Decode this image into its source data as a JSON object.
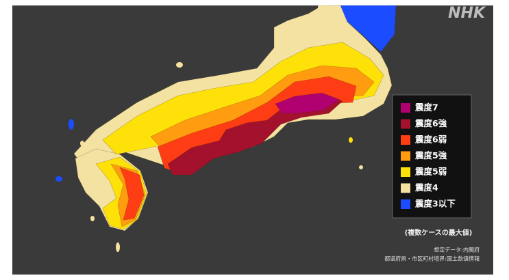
{
  "logo": "NHK",
  "legend": {
    "items": [
      {
        "label": "震度7",
        "color": "#b1006f"
      },
      {
        "label": "震度6強",
        "color": "#a3112c"
      },
      {
        "label": "震度6弱",
        "color": "#ff3d14"
      },
      {
        "label": "震度5強",
        "color": "#ff9c10"
      },
      {
        "label": "震度5弱",
        "color": "#ffe10a"
      },
      {
        "label": "震度4",
        "color": "#f4e2a2"
      },
      {
        "label": "震度3以下",
        "color": "#1b4dff"
      }
    ]
  },
  "note": "(複数ケースの最大値)",
  "source": {
    "data": "想定データ:内閣府",
    "boundaries": "都道府県・市区町村境界:国土数値情報"
  }
}
